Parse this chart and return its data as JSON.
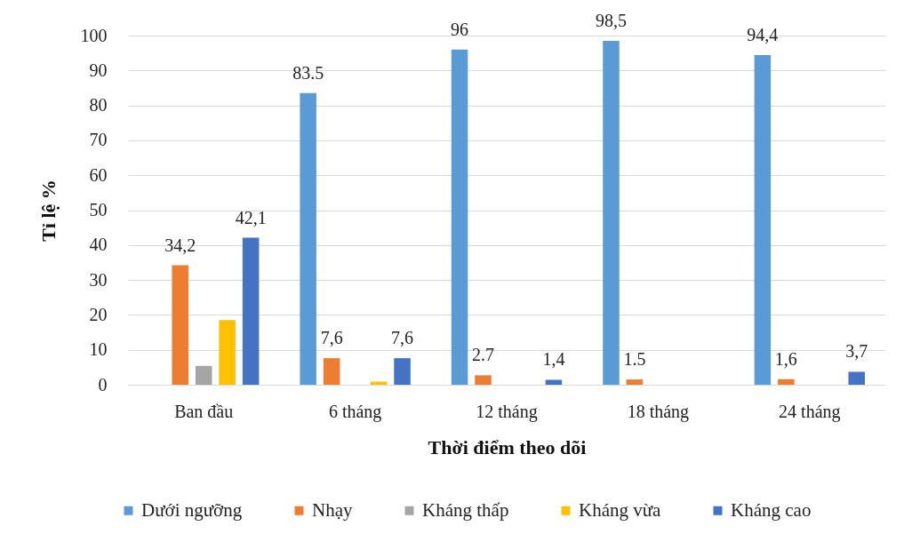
{
  "chart_data": {
    "type": "bar",
    "xlabel": "Thời điểm theo dõi",
    "ylabel": "Tỉ lệ %",
    "categories": [
      "Ban đầu",
      "6 tháng",
      "12 tháng",
      "18 tháng",
      "24 tháng"
    ],
    "series": [
      {
        "name": "Dưới ngưỡng",
        "color": "#5b9bd5",
        "values": [
          null,
          83.5,
          96,
          98.5,
          94.4
        ],
        "value_labels": [
          null,
          "83.5",
          "96",
          "98,5",
          "94,4"
        ]
      },
      {
        "name": "Nhạy",
        "color": "#ed7d31",
        "values": [
          34.2,
          7.6,
          2.7,
          1.5,
          1.6
        ],
        "value_labels": [
          "34,2",
          "7,6",
          "2.7",
          "1.5",
          "1,6"
        ]
      },
      {
        "name": "Kháng thấp",
        "color": "#a5a5a5",
        "values": [
          5.4,
          null,
          null,
          null,
          null
        ],
        "value_labels": [
          null,
          null,
          null,
          null,
          null
        ]
      },
      {
        "name": "Kháng vừa",
        "color": "#ffc000",
        "values": [
          18.5,
          0.9,
          null,
          null,
          null
        ],
        "value_labels": [
          null,
          null,
          null,
          null,
          null
        ]
      },
      {
        "name": "Kháng cao",
        "color": "#4472c4",
        "values": [
          42.1,
          7.6,
          1.4,
          null,
          3.7
        ],
        "value_labels": [
          "42,1",
          "7,6",
          "1,4",
          null,
          "3,7"
        ]
      }
    ],
    "ylim": [
      0,
      100
    ],
    "yticks": [
      0,
      10,
      20,
      30,
      40,
      50,
      60,
      70,
      80,
      90,
      100
    ],
    "grid": "y",
    "legend": "bottom"
  }
}
